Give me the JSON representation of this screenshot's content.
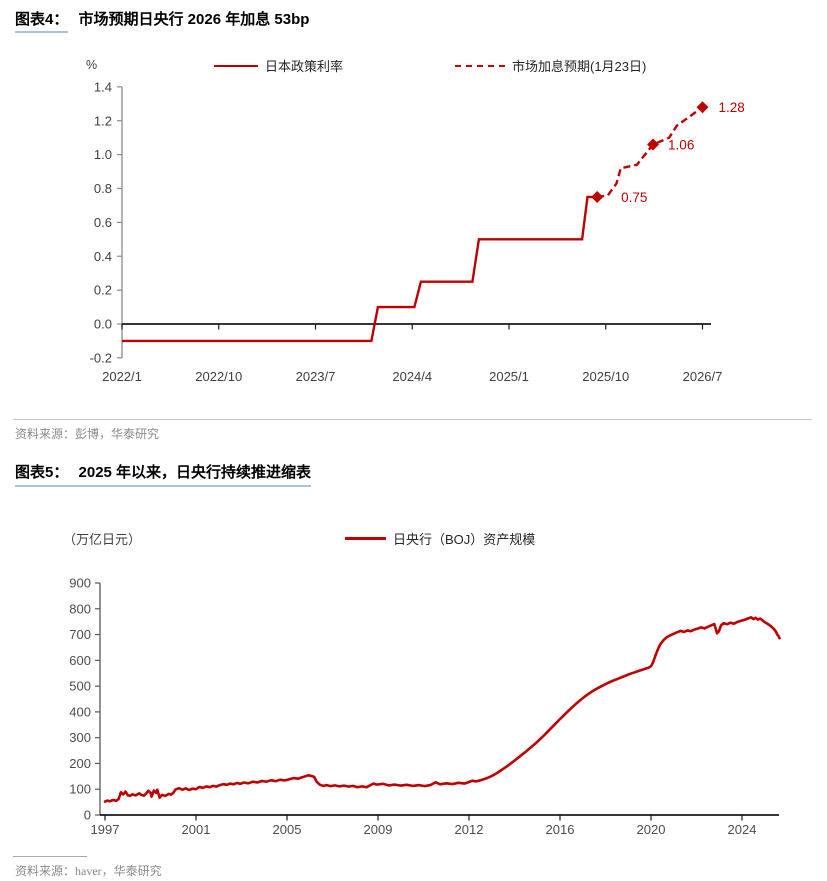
{
  "figure4": {
    "label": "图表4：",
    "title": "市场预期日央行 2026 年加息 53bp",
    "unit": "%",
    "legend": [
      {
        "label": "日本政策利率",
        "style": "solid"
      },
      {
        "label": "市场加息预期(1月23日)",
        "style": "dashed"
      }
    ],
    "source": "资料来源：彭博，华泰研究",
    "accent": "#c00000"
  },
  "figure5": {
    "label": "图表5：",
    "title": "2025 年以来，日央行持续推进缩表",
    "unit": "（万亿日元）",
    "legend": [
      {
        "label": "日央行（BOJ）资产规模",
        "style": "solid"
      }
    ],
    "source": "资料来源：haver，华泰研究",
    "accent": "#c00000"
  },
  "chart_data": [
    {
      "type": "line",
      "title": "市场预期日央行 2026 年加息 53bp",
      "ylabel": "%",
      "ylim": [
        -0.2,
        1.4
      ],
      "ytick_vals": [
        -0.2,
        0.0,
        0.2,
        0.4,
        0.6,
        0.8,
        1.0,
        1.2,
        1.4
      ],
      "ytick_labels": [
        "-0.2",
        "0.0",
        "0.2",
        "0.4",
        "0.6",
        "0.8",
        "1.0",
        "1.2",
        "1.4"
      ],
      "x_unit": "months since 2022/1",
      "xtick_months": [
        0,
        9,
        18,
        27,
        36,
        45,
        54
      ],
      "xtick_labels": [
        "2022/1",
        "2022/10",
        "2023/7",
        "2024/4",
        "2025/1",
        "2025/10",
        "2026/7"
      ],
      "legend_position": "top",
      "grid": false,
      "series": [
        {
          "name": "日本政策利率",
          "style": "solid",
          "color": "#c00000",
          "points": [
            [
              0,
              -0.1
            ],
            [
              23.2,
              -0.1
            ],
            [
              23.8,
              0.1
            ],
            [
              27.2,
              0.1
            ],
            [
              27.8,
              0.25
            ],
            [
              32.6,
              0.25
            ],
            [
              33.2,
              0.5
            ],
            [
              42.8,
              0.5
            ],
            [
              43.3,
              0.75
            ],
            [
              44.2,
              0.75
            ]
          ]
        },
        {
          "name": "市场加息预期(1月23日)",
          "style": "dashed",
          "color": "#c00000",
          "points": [
            [
              44.2,
              0.75
            ],
            [
              45.2,
              0.76
            ],
            [
              46.0,
              0.83
            ],
            [
              46.4,
              0.92
            ],
            [
              47.9,
              0.94
            ],
            [
              49.4,
              1.06
            ],
            [
              50.9,
              1.1
            ],
            [
              51.6,
              1.17
            ],
            [
              52.7,
              1.22
            ],
            [
              54.0,
              1.28
            ]
          ],
          "markers": [
            {
              "m": 44.2,
              "v": 0.75,
              "label": "0.75"
            },
            {
              "m": 49.4,
              "v": 1.06,
              "label": "1.06"
            },
            {
              "m": 54.0,
              "v": 1.28,
              "label": "1.28"
            }
          ]
        }
      ]
    },
    {
      "type": "line",
      "title": "2025 年以来，日央行持续推进缩表",
      "ylabel": "（万亿日元）",
      "ylim": [
        0,
        900
      ],
      "ytick_vals": [
        0,
        100,
        200,
        300,
        400,
        500,
        600,
        700,
        800,
        900
      ],
      "ytick_labels": [
        "0",
        "100",
        "200",
        "300",
        "400",
        "500",
        "600",
        "700",
        "800",
        "900"
      ],
      "xtick_years": [
        1997,
        2001,
        2005,
        2009,
        2012,
        2016,
        2020,
        2024
      ],
      "xtick_labels": [
        "1997",
        "2001",
        "2005",
        "2009",
        "2012",
        "2016",
        "2020",
        "2024"
      ],
      "legend_position": "top",
      "grid": false,
      "series": [
        {
          "name": "日央行（BOJ）资产规模",
          "style": "solid",
          "color": "#c00000",
          "points": [
            [
              1997.0,
              52
            ],
            [
              1997.1,
              56
            ],
            [
              1997.2,
              53
            ],
            [
              1997.35,
              58
            ],
            [
              1997.5,
              55
            ],
            [
              1997.6,
              62
            ],
            [
              1997.7,
              88
            ],
            [
              1997.8,
              80
            ],
            [
              1997.9,
              91
            ],
            [
              1998.0,
              77
            ],
            [
              1998.1,
              74
            ],
            [
              1998.2,
              80
            ],
            [
              1998.35,
              76
            ],
            [
              1998.5,
              84
            ],
            [
              1998.6,
              78
            ],
            [
              1998.7,
              75
            ],
            [
              1998.8,
              82
            ],
            [
              1998.9,
              94
            ],
            [
              1999.0,
              87
            ],
            [
              1999.05,
              71
            ],
            [
              1999.15,
              95
            ],
            [
              1999.25,
              86
            ],
            [
              1999.3,
              98
            ],
            [
              1999.4,
              67
            ],
            [
              1999.5,
              78
            ],
            [
              1999.65,
              74
            ],
            [
              1999.8,
              82
            ],
            [
              1999.9,
              79
            ],
            [
              2000.0,
              86
            ],
            [
              2000.1,
              99
            ],
            [
              2000.25,
              104
            ],
            [
              2000.4,
              98
            ],
            [
              2000.55,
              103
            ],
            [
              2000.7,
              97
            ],
            [
              2000.85,
              102
            ],
            [
              2001.0,
              100
            ],
            [
              2001.15,
              109
            ],
            [
              2001.3,
              105
            ],
            [
              2001.45,
              111
            ],
            [
              2001.6,
              108
            ],
            [
              2001.75,
              113
            ],
            [
              2001.9,
              110
            ],
            [
              2002.05,
              116
            ],
            [
              2002.2,
              120
            ],
            [
              2002.35,
              117
            ],
            [
              2002.5,
              122
            ],
            [
              2002.65,
              119
            ],
            [
              2002.8,
              124
            ],
            [
              2002.95,
              121
            ],
            [
              2003.1,
              126
            ],
            [
              2003.3,
              123
            ],
            [
              2003.5,
              129
            ],
            [
              2003.7,
              126
            ],
            [
              2003.9,
              132
            ],
            [
              2004.1,
              129
            ],
            [
              2004.3,
              135
            ],
            [
              2004.5,
              131
            ],
            [
              2004.7,
              137
            ],
            [
              2004.9,
              134
            ],
            [
              2005.1,
              139
            ],
            [
              2005.3,
              143
            ],
            [
              2005.5,
              141
            ],
            [
              2005.65,
              146
            ],
            [
              2005.8,
              150
            ],
            [
              2005.95,
              154
            ],
            [
              2006.1,
              151
            ],
            [
              2006.2,
              147
            ],
            [
              2006.3,
              129
            ],
            [
              2006.45,
              117
            ],
            [
              2006.6,
              113
            ],
            [
              2006.75,
              116
            ],
            [
              2006.9,
              112
            ],
            [
              2007.1,
              115
            ],
            [
              2007.3,
              111
            ],
            [
              2007.5,
              114
            ],
            [
              2007.7,
              110
            ],
            [
              2007.9,
              113
            ],
            [
              2008.1,
              108
            ],
            [
              2008.3,
              111
            ],
            [
              2008.5,
              108
            ],
            [
              2008.65,
              115
            ],
            [
              2008.8,
              122
            ],
            [
              2008.95,
              118
            ],
            [
              2009.15,
              121
            ],
            [
              2009.35,
              115
            ],
            [
              2009.55,
              118
            ],
            [
              2009.75,
              114
            ],
            [
              2009.95,
              117
            ],
            [
              2010.15,
              113
            ],
            [
              2010.35,
              116
            ],
            [
              2010.55,
              112
            ],
            [
              2010.75,
              117
            ],
            [
              2010.9,
              127
            ],
            [
              2011.05,
              119
            ],
            [
              2011.25,
              123
            ],
            [
              2011.45,
              120
            ],
            [
              2011.65,
              125
            ],
            [
              2011.85,
              122
            ],
            [
              2012.0,
              128
            ],
            [
              2012.15,
              133
            ],
            [
              2012.3,
              130
            ],
            [
              2012.5,
              135
            ],
            [
              2012.7,
              140
            ],
            [
              2012.9,
              147
            ],
            [
              2013.1,
              156
            ],
            [
              2013.3,
              167
            ],
            [
              2013.5,
              179
            ],
            [
              2013.7,
              191
            ],
            [
              2013.9,
              204
            ],
            [
              2014.1,
              218
            ],
            [
              2014.3,
              232
            ],
            [
              2014.5,
              246
            ],
            [
              2014.7,
              261
            ],
            [
              2014.9,
              276
            ],
            [
              2015.1,
              292
            ],
            [
              2015.3,
              309
            ],
            [
              2015.5,
              327
            ],
            [
              2015.7,
              345
            ],
            [
              2015.9,
              363
            ],
            [
              2016.1,
              381
            ],
            [
              2016.3,
              398
            ],
            [
              2016.5,
              415
            ],
            [
              2016.7,
              431
            ],
            [
              2016.9,
              446
            ],
            [
              2017.1,
              460
            ],
            [
              2017.3,
              473
            ],
            [
              2017.5,
              484
            ],
            [
              2017.7,
              494
            ],
            [
              2017.9,
              503
            ],
            [
              2018.1,
              512
            ],
            [
              2018.3,
              520
            ],
            [
              2018.5,
              527
            ],
            [
              2018.7,
              534
            ],
            [
              2018.9,
              541
            ],
            [
              2019.1,
              548
            ],
            [
              2019.3,
              554
            ],
            [
              2019.5,
              560
            ],
            [
              2019.7,
              566
            ],
            [
              2019.9,
              572
            ],
            [
              2020.0,
              577
            ],
            [
              2020.08,
              590
            ],
            [
              2020.17,
              612
            ],
            [
              2020.28,
              638
            ],
            [
              2020.4,
              661
            ],
            [
              2020.55,
              678
            ],
            [
              2020.7,
              690
            ],
            [
              2020.85,
              697
            ],
            [
              2021.0,
              703
            ],
            [
              2021.15,
              709
            ],
            [
              2021.3,
              714
            ],
            [
              2021.45,
              710
            ],
            [
              2021.6,
              716
            ],
            [
              2021.75,
              713
            ],
            [
              2021.9,
              719
            ],
            [
              2022.05,
              723
            ],
            [
              2022.2,
              728
            ],
            [
              2022.35,
              724
            ],
            [
              2022.5,
              730
            ],
            [
              2022.65,
              736
            ],
            [
              2022.78,
              741
            ],
            [
              2022.85,
              722
            ],
            [
              2022.9,
              705
            ],
            [
              2022.98,
              712
            ],
            [
              2023.08,
              736
            ],
            [
              2023.2,
              744
            ],
            [
              2023.35,
              740
            ],
            [
              2023.5,
              746
            ],
            [
              2023.65,
              742
            ],
            [
              2023.8,
              749
            ],
            [
              2023.95,
              753
            ],
            [
              2024.1,
              757
            ],
            [
              2024.25,
              762
            ],
            [
              2024.4,
              767
            ],
            [
              2024.5,
              760
            ],
            [
              2024.6,
              765
            ],
            [
              2024.7,
              758
            ],
            [
              2024.8,
              762
            ],
            [
              2024.9,
              755
            ],
            [
              2025.0,
              748
            ],
            [
              2025.1,
              743
            ],
            [
              2025.2,
              737
            ],
            [
              2025.3,
              730
            ],
            [
              2025.4,
              722
            ],
            [
              2025.5,
              710
            ],
            [
              2025.55,
              700
            ],
            [
              2025.6,
              695
            ],
            [
              2025.65,
              686
            ]
          ]
        }
      ]
    }
  ]
}
